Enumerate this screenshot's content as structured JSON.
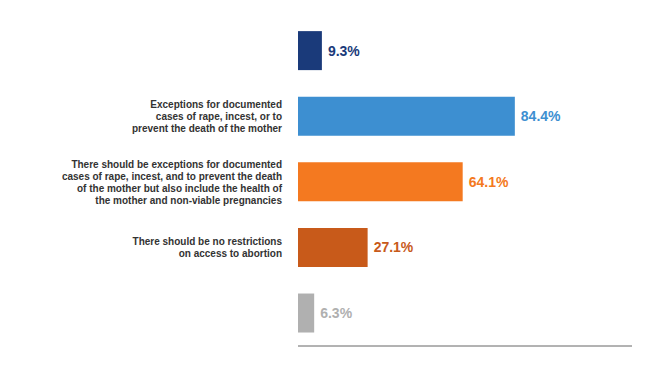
{
  "chart_data": {
    "type": "bar",
    "orientation": "horizontal",
    "categories": [
      null,
      "Exceptions for documented\ncases of rape, incest, or to\nprevent the death of the mother",
      "There should be exceptions for documented\ncases of rape, incest, and to prevent the death\nof the mother but also include the health of\nthe mother and non-viable pregnancies",
      "There should be no restrictions\non access to abortion",
      null
    ],
    "values": [
      9.3,
      84.4,
      64.1,
      27.1,
      6.3
    ],
    "value_labels": [
      "9.3%",
      "84.4%",
      "64.1%",
      "27.1%",
      "6.3%"
    ],
    "colors": [
      "#1a3a7a",
      "#3d8fd1",
      "#f47920",
      "#c85a1a",
      "#b0b0b0"
    ],
    "xlim": [
      0,
      130
    ],
    "data_labels": true,
    "tick_labels": "y",
    "grid": false
  }
}
